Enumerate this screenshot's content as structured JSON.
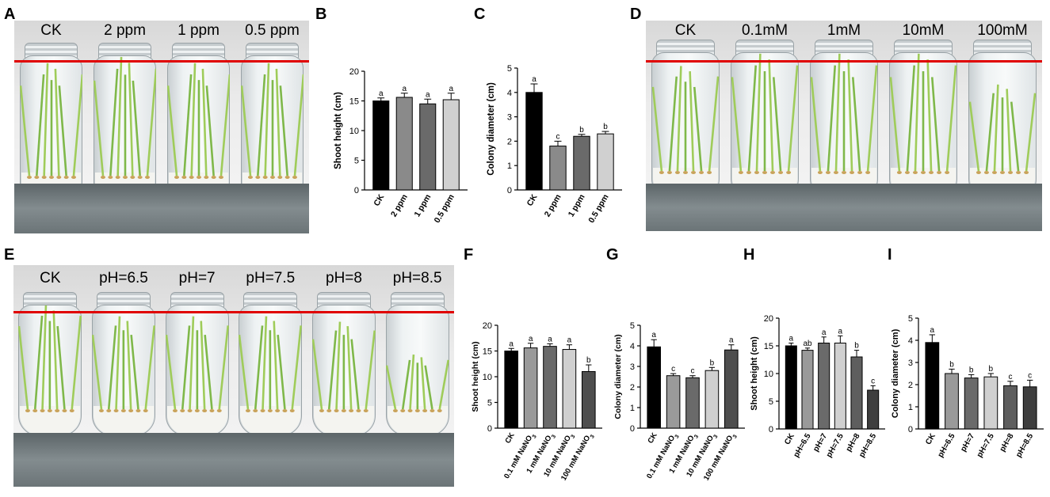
{
  "panels": {
    "A": {
      "letter": "A",
      "labels": [
        "CK",
        "2 ppm",
        "1 ppm",
        "0.5 ppm"
      ]
    },
    "D": {
      "letter": "D",
      "labels": [
        "CK",
        "0.1mM",
        "1mM",
        "10mM",
        "100mM"
      ]
    },
    "E": {
      "letter": "E",
      "labels": [
        "CK",
        "pH=6.5",
        "pH=7",
        "pH=7.5",
        "pH=8",
        "pH=8.5"
      ]
    }
  },
  "colors": {
    "black": "#000000",
    "dark_gray": "#505050",
    "mid_gray": "#7a7a7a",
    "light_gray": "#b4b4b4",
    "lighter_gray": "#d6d6d6",
    "red_line": "#e00000"
  },
  "chart_data": [
    {
      "letter": "B",
      "type": "bar",
      "categories": [
        "CK",
        "2 ppm",
        "1 ppm",
        "0.5 ppm"
      ],
      "values": [
        15.0,
        15.6,
        14.5,
        15.2
      ],
      "errors": [
        0.5,
        0.7,
        0.8,
        1.1
      ],
      "sig": [
        "a",
        "a",
        "a",
        "a"
      ],
      "fills": [
        "#000000",
        "#8a8a8a",
        "#6a6a6a",
        "#d0d0d0"
      ],
      "ylabel": "Shoot height (cm)",
      "ylim": [
        0,
        20
      ],
      "yticks": [
        0,
        5,
        10,
        15,
        20
      ]
    },
    {
      "letter": "C",
      "type": "bar",
      "categories": [
        "CK",
        "2 ppm",
        "1 ppm",
        "0.5 ppm"
      ],
      "values": [
        4.0,
        1.8,
        2.2,
        2.3
      ],
      "errors": [
        0.35,
        0.2,
        0.08,
        0.1
      ],
      "sig": [
        "a",
        "c",
        "b",
        "b"
      ],
      "fills": [
        "#000000",
        "#8a8a8a",
        "#6a6a6a",
        "#d0d0d0"
      ],
      "ylabel": "Colony diameter (cm)",
      "ylim": [
        0,
        5
      ],
      "yticks": [
        0,
        1,
        2,
        3,
        4,
        5
      ]
    },
    {
      "letter": "F",
      "type": "bar",
      "categories": [
        "CK",
        "0.1 mM NaNO₃",
        "1 mM NaNO₃",
        "10 mM NaNO₃",
        "100 mM NaNO₃"
      ],
      "values": [
        15.0,
        15.6,
        15.9,
        15.3,
        11.0
      ],
      "errors": [
        0.5,
        0.9,
        0.5,
        0.9,
        1.3
      ],
      "sig": [
        "a",
        "a",
        "a",
        "a",
        "b"
      ],
      "fills": [
        "#000000",
        "#9a9a9a",
        "#6a6a6a",
        "#d0d0d0",
        "#4e4e4e"
      ],
      "ylabel": "Shoot height (cm)",
      "ylim": [
        0,
        20
      ],
      "yticks": [
        0,
        5,
        10,
        15,
        20
      ]
    },
    {
      "letter": "G",
      "type": "bar",
      "categories": [
        "CK",
        "0.1 mM NaNO₃",
        "1 mM NaNO₃",
        "10 mM NaNO₃",
        "100 mM NaNO₃"
      ],
      "values": [
        3.95,
        2.55,
        2.45,
        2.8,
        3.8
      ],
      "errors": [
        0.35,
        0.1,
        0.1,
        0.15,
        0.25
      ],
      "sig": [
        "a",
        "c",
        "c",
        "b",
        "a"
      ],
      "fills": [
        "#000000",
        "#9a9a9a",
        "#6a6a6a",
        "#d0d0d0",
        "#4e4e4e"
      ],
      "ylabel": "Colony diameter (cm)",
      "ylim": [
        0,
        5
      ],
      "yticks": [
        0,
        1,
        2,
        3,
        4,
        5
      ]
    },
    {
      "letter": "H",
      "type": "bar",
      "categories": [
        "CK",
        "pH=6.5",
        "pH=7",
        "pH=7.5",
        "pH=8",
        "pH=8.5"
      ],
      "values": [
        15.0,
        14.2,
        15.5,
        15.5,
        13.0,
        7.0
      ],
      "errors": [
        0.5,
        0.4,
        1.1,
        1.3,
        1.2,
        0.8
      ],
      "sig": [
        "a",
        "ab",
        "a",
        "a",
        "b",
        "c"
      ],
      "fills": [
        "#000000",
        "#9a9a9a",
        "#6a6a6a",
        "#d0d0d0",
        "#5e5e5e",
        "#3e3e3e"
      ],
      "ylabel": "Shoot height (cm)",
      "ylim": [
        0,
        20
      ],
      "yticks": [
        0,
        5,
        10,
        15,
        20
      ]
    },
    {
      "letter": "I",
      "type": "bar",
      "categories": [
        "CK",
        "pH=6.5",
        "pH=7",
        "pH=7.5",
        "pH=8",
        "pH=8.5"
      ],
      "values": [
        3.9,
        2.5,
        2.3,
        2.35,
        1.95,
        1.9
      ],
      "errors": [
        0.35,
        0.2,
        0.15,
        0.15,
        0.2,
        0.3
      ],
      "sig": [
        "a",
        "b",
        "b",
        "b",
        "c",
        "c"
      ],
      "fills": [
        "#000000",
        "#9a9a9a",
        "#6a6a6a",
        "#d0d0d0",
        "#5e5e5e",
        "#3e3e3e"
      ],
      "ylabel": "Colony diameter (cm)",
      "ylim": [
        0,
        5
      ],
      "yticks": [
        0,
        1,
        2,
        3,
        4,
        5
      ]
    }
  ]
}
